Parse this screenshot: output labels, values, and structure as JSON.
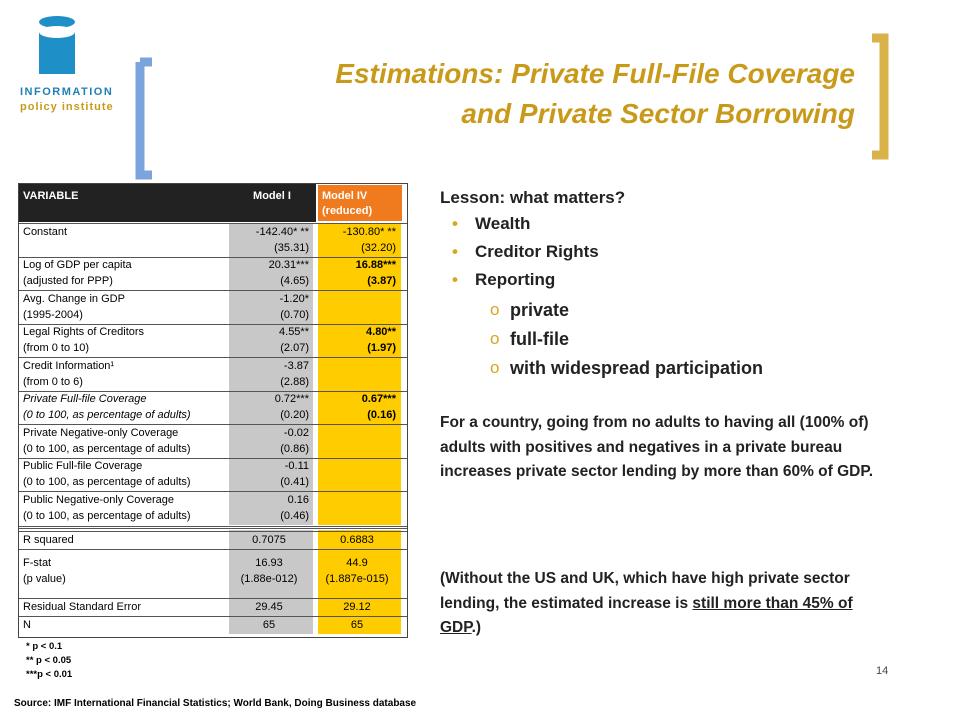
{
  "logo": {
    "line1": "INFORMATION",
    "line2": "policy institute"
  },
  "title": {
    "line1": "Estimations: Private Full-File Coverage",
    "line2": "and Private Sector Borrowing"
  },
  "table": {
    "header": {
      "variable": "VARIABLE",
      "model_1": "Model I",
      "model_4": [
        "Model IV",
        "(reduced)"
      ]
    },
    "rows": [
      {
        "variable": [
          "Constant"
        ],
        "model_1": [
          "-142.40* **",
          "(35.31)"
        ],
        "model_4": [
          "-130.80* **",
          "(32.20)"
        ]
      },
      {
        "variable": [
          "Log of GDP per capita",
          "(adjusted for PPP)"
        ],
        "model_1": [
          "20.31***",
          "(4.65)"
        ],
        "model_4": [
          "16.88***",
          "(3.87)"
        ],
        "bold": true
      },
      {
        "variable": [
          "Avg. Change in GDP",
          "(1995-2004)"
        ],
        "model_1": [
          "-1.20*",
          "(0.70)"
        ],
        "model_4": []
      },
      {
        "variable": [
          "Legal Rights of Creditors",
          "(from 0 to 10)"
        ],
        "model_1": [
          "4.55**",
          "(2.07)"
        ],
        "model_4": [
          "4.80**",
          "(1.97)"
        ],
        "bold": true
      },
      {
        "variable": [
          "Credit Information¹",
          "(from 0 to 6)"
        ],
        "model_1": [
          "-3.87",
          "(2.88)"
        ],
        "model_4": []
      },
      {
        "variable": [
          "Private Full-file Coverage",
          "(0 to 100, as percentage of adults)"
        ],
        "model_1": [
          "0.72***",
          "(0.20)"
        ],
        "model_4": [
          "0.67***",
          "(0.16)"
        ],
        "bold": true,
        "italic": true
      },
      {
        "variable": [
          "Private Negative-only Coverage",
          "(0 to 100, as percentage of adults)"
        ],
        "model_1": [
          "-0.02",
          "(0.86)"
        ],
        "model_4": []
      },
      {
        "variable": [
          "Public Full-file Coverage",
          "(0 to 100, as percentage of adults)"
        ],
        "model_1": [
          "-0.11",
          "(0.41)"
        ],
        "model_4": []
      },
      {
        "variable": [
          "Public Negative-only Coverage",
          "(0 to 100, as percentage of adults)"
        ],
        "model_1": [
          "0.16",
          "(0.46)"
        ],
        "model_4": []
      }
    ],
    "stats": [
      {
        "variable": [
          "R squared"
        ],
        "model_1": [
          "0.7075"
        ],
        "model_4": [
          "0.6883"
        ]
      },
      {
        "variable": [
          "F-stat",
          "(p value)"
        ],
        "model_1": [
          "16.93",
          "(1.88e-012)"
        ],
        "model_4": [
          "44.9",
          "(1.887e-015)"
        ]
      },
      {
        "variable": [
          "Residual Standard Error"
        ],
        "model_1": [
          "29.45"
        ],
        "model_4": [
          "29.12"
        ]
      },
      {
        "variable": [
          "N"
        ],
        "model_1": [
          "65"
        ],
        "model_4": [
          "65"
        ]
      }
    ]
  },
  "footnotes": [
    "* p < 0.1",
    "** p < 0.05",
    "***p < 0.01"
  ],
  "source": "Source: IMF International Financial Statistics; World Bank, Doing Business database",
  "page_number": "14",
  "lesson": {
    "heading": "Lesson: what matters?",
    "bullets": [
      "Wealth",
      "Creditor Rights",
      "Reporting"
    ],
    "sub_bullet_marker": "o",
    "sub_bullets": [
      "private",
      "full-file",
      "with widespread participation"
    ]
  },
  "paragraph_1": "For a country, going from no adults to having all (100% of) adults with positives and negatives in a private bureau increases private sector lending by more than 60% of GDP.",
  "paragraph_2": {
    "before": "(Without the US and UK, which have high private sector lending, the estimated increase is",
    "underlined": "still more than 45% of GDP",
    "after": ".)"
  }
}
